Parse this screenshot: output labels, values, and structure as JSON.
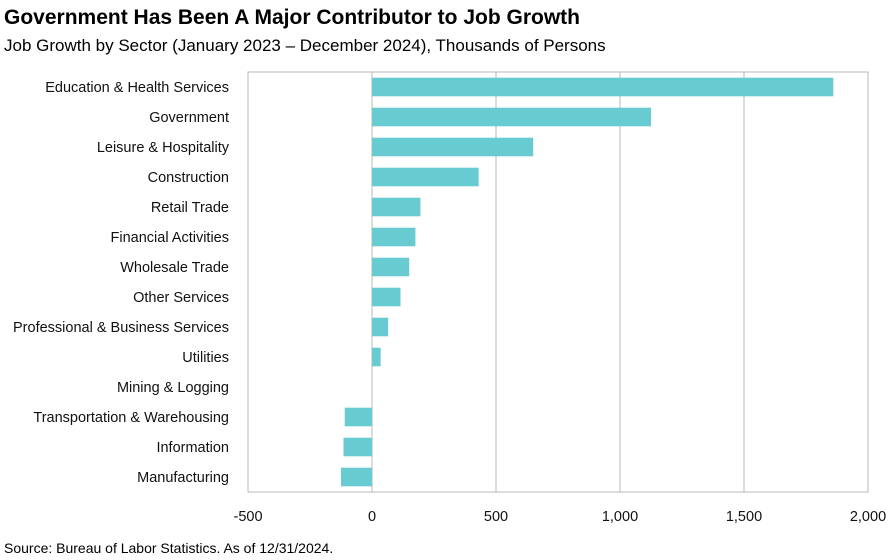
{
  "title": "Government Has Been A Major Contributor to Job Growth",
  "subtitle": "Job Growth by Sector (January 2023 – December 2024), Thousands of Persons",
  "source": "Source: Bureau of Labor Statistics. As of 12/31/2024.",
  "chart_data": {
    "type": "bar",
    "orientation": "horizontal",
    "categories": [
      "Education & Health Services",
      "Government",
      "Leisure & Hospitality",
      "Construction",
      "Retail Trade",
      "Financial Activities",
      "Wholesale Trade",
      "Other Services",
      "Professional & Business Services",
      "Utilities",
      "Mining & Logging",
      "Transportation & Warehousing",
      "Information ",
      "Manufacturing"
    ],
    "values": [
      1860,
      1125,
      650,
      430,
      195,
      175,
      150,
      115,
      65,
      35,
      0,
      -110,
      -115,
      -125
    ],
    "xlim": [
      -500,
      2000
    ],
    "xticks": [
      -500,
      0,
      500,
      1000,
      1500,
      2000
    ],
    "xtick_labels": [
      "-500",
      "0",
      "500",
      "1,000",
      "1,500",
      "2,000"
    ],
    "bar_color": "#67cbd1",
    "grid": "vertical",
    "grid_color": "#b8b8b8",
    "legend": "none"
  }
}
